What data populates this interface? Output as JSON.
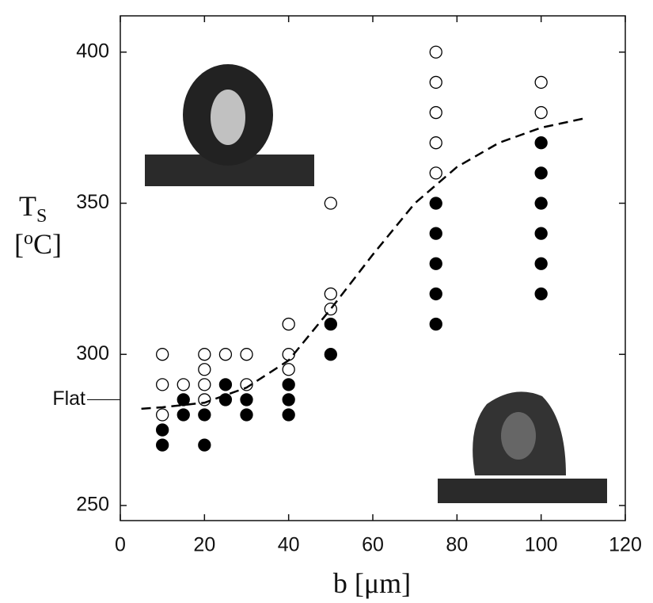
{
  "chart_data": {
    "type": "scatter",
    "xlabel": "b [μm]",
    "ylabel": {
      "symbol": "T",
      "subscript": "S",
      "unit_open": "[",
      "unit_sup": "o",
      "unit_close": "C]"
    },
    "xlim": [
      0,
      120
    ],
    "xticks": [
      0,
      20,
      40,
      60,
      80,
      100,
      120
    ],
    "ylim": [
      245,
      412
    ],
    "yticks": [
      250,
      300,
      350,
      400
    ],
    "series": [
      {
        "marker": "open",
        "color": "#000000",
        "x": [
          10,
          10,
          10,
          15,
          20,
          20,
          20,
          20,
          25,
          30,
          30,
          40,
          40,
          40,
          50,
          50,
          50,
          75,
          75,
          75,
          75,
          75,
          100,
          100
        ],
        "values": [
          300,
          290,
          280,
          290,
          300,
          295,
          290,
          285,
          300,
          300,
          290,
          310,
          300,
          295,
          350,
          320,
          315,
          400,
          390,
          380,
          370,
          360,
          390,
          380
        ]
      },
      {
        "marker": "filled",
        "color": "#000000",
        "x": [
          10,
          10,
          15,
          15,
          20,
          20,
          25,
          25,
          30,
          30,
          40,
          40,
          40,
          50,
          50,
          75,
          75,
          75,
          75,
          75,
          100,
          100,
          100,
          100,
          100,
          100
        ],
        "values": [
          275,
          270,
          285,
          280,
          280,
          270,
          290,
          285,
          285,
          280,
          290,
          285,
          280,
          310,
          300,
          350,
          340,
          330,
          320,
          310,
          370,
          360,
          350,
          340,
          330,
          320
        ]
      },
      {
        "marker": "dashed-line",
        "color": "#000000",
        "x": [
          5,
          10,
          20,
          30,
          40,
          50,
          60,
          70,
          80,
          90,
          100,
          110
        ],
        "values": [
          282,
          282.5,
          284,
          289,
          298,
          315,
          333,
          350,
          362,
          370,
          375,
          378
        ]
      }
    ],
    "annotations": [
      {
        "text": "Flat",
        "y": 285
      }
    ]
  }
}
